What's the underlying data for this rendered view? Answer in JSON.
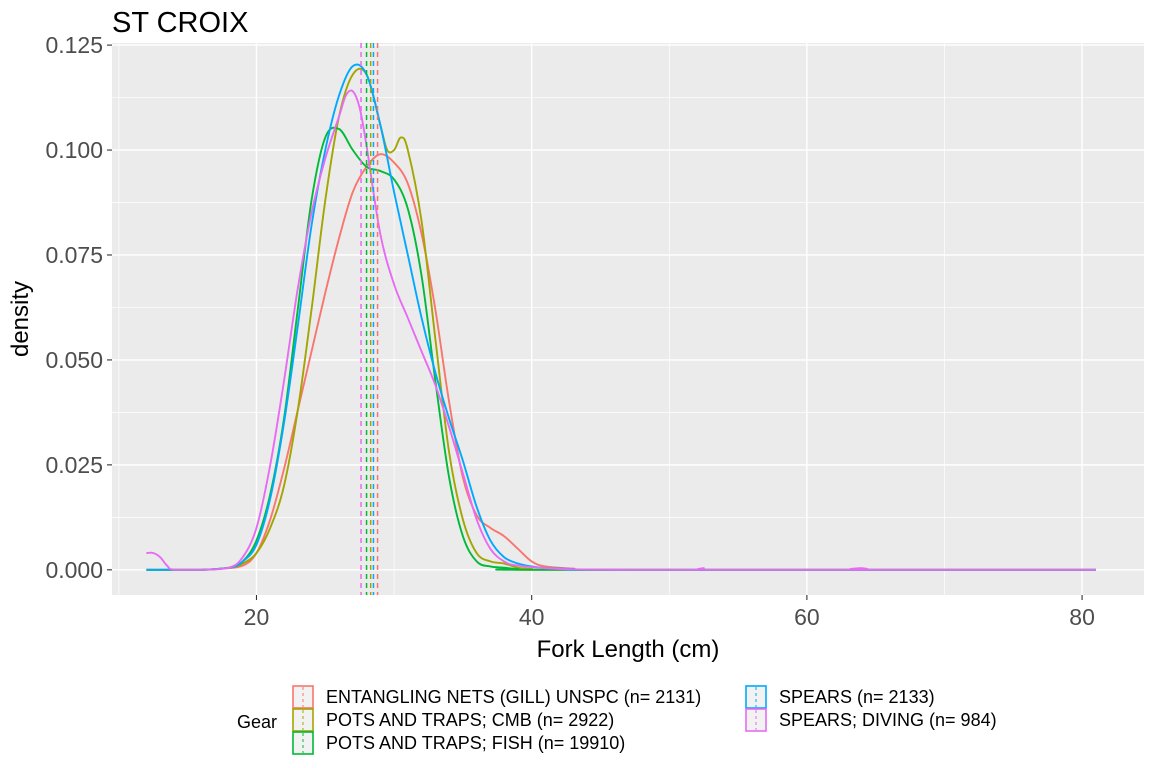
{
  "chart_data": {
    "type": "line",
    "title": "ST CROIX",
    "xlabel": "Fork Length (cm)",
    "ylabel": "density",
    "xlim": [
      9.5,
      84.5
    ],
    "ylim": [
      -0.006,
      0.1255
    ],
    "x_ticks": [
      20,
      40,
      60,
      80
    ],
    "x_tick_labels": [
      "20",
      "40",
      "60",
      "80"
    ],
    "x_minor_ticks": [
      10,
      30,
      50,
      70
    ],
    "y_ticks": [
      0,
      0.025,
      0.05,
      0.075,
      0.1,
      0.125
    ],
    "y_tick_labels": [
      "0.000",
      "0.025",
      "0.050",
      "0.075",
      "0.100",
      "0.125"
    ],
    "grid": true,
    "background": "#ebebeb",
    "legend": {
      "title": "Gear",
      "position": "bottom"
    },
    "series": [
      {
        "name": "ENTANGLING NETS (GILL) UNSPC (n= 2131)",
        "color": "#F8766D",
        "mean": 28.8,
        "points": [
          [
            12,
            0
          ],
          [
            14,
            0
          ],
          [
            16,
            0
          ],
          [
            17.5,
            0.0003
          ],
          [
            19,
            0.001
          ],
          [
            20,
            0.004
          ],
          [
            21,
            0.012
          ],
          [
            22,
            0.024
          ],
          [
            23,
            0.038
          ],
          [
            24,
            0.052
          ],
          [
            25,
            0.066
          ],
          [
            26,
            0.079
          ],
          [
            27,
            0.09
          ],
          [
            28,
            0.096
          ],
          [
            29,
            0.099
          ],
          [
            30,
            0.097
          ],
          [
            31,
            0.092
          ],
          [
            32,
            0.08
          ],
          [
            33,
            0.062
          ],
          [
            34,
            0.04
          ],
          [
            35,
            0.022
          ],
          [
            36,
            0.013
          ],
          [
            37,
            0.01
          ],
          [
            38,
            0.008
          ],
          [
            39,
            0.005
          ],
          [
            40,
            0.002
          ],
          [
            41,
            0.0008
          ],
          [
            43,
            0.0003
          ],
          [
            46,
            0
          ],
          [
            81,
            0
          ]
        ]
      },
      {
        "name": "POTS AND TRAPS; CMB (n= 2922)",
        "color": "#A3A500",
        "mean": 28.3,
        "points": [
          [
            12,
            0
          ],
          [
            14,
            0
          ],
          [
            16,
            0
          ],
          [
            18,
            0.0005
          ],
          [
            19,
            0.0015
          ],
          [
            20,
            0.004
          ],
          [
            21,
            0.01
          ],
          [
            22,
            0.02
          ],
          [
            23,
            0.038
          ],
          [
            24,
            0.062
          ],
          [
            25,
            0.088
          ],
          [
            26,
            0.108
          ],
          [
            27,
            0.118
          ],
          [
            28,
            0.118
          ],
          [
            29,
            0.106
          ],
          [
            29.5,
            0.1
          ],
          [
            30,
            0.1
          ],
          [
            30.5,
            0.103
          ],
          [
            31,
            0.1
          ],
          [
            32,
            0.083
          ],
          [
            33,
            0.055
          ],
          [
            34,
            0.028
          ],
          [
            35,
            0.012
          ],
          [
            36,
            0.004
          ],
          [
            37,
            0.002
          ],
          [
            38,
            0.0015
          ],
          [
            39,
            0.0005
          ],
          [
            40,
            0.0002
          ],
          [
            42,
            0
          ],
          [
            81,
            0
          ]
        ]
      },
      {
        "name": "POTS AND TRAPS; FISH (n= 19910)",
        "color": "#00BA38",
        "mean": 28.0,
        "points": [
          [
            12,
            0
          ],
          [
            14,
            0
          ],
          [
            16,
            0
          ],
          [
            18,
            0.0005
          ],
          [
            19,
            0.002
          ],
          [
            20,
            0.007
          ],
          [
            21,
            0.018
          ],
          [
            22,
            0.036
          ],
          [
            23,
            0.062
          ],
          [
            24,
            0.088
          ],
          [
            25,
            0.103
          ],
          [
            26,
            0.105
          ],
          [
            27,
            0.1
          ],
          [
            28,
            0.096
          ],
          [
            29,
            0.095
          ],
          [
            30,
            0.093
          ],
          [
            31,
            0.086
          ],
          [
            32,
            0.07
          ],
          [
            33,
            0.045
          ],
          [
            34,
            0.022
          ],
          [
            35,
            0.008
          ],
          [
            36,
            0.002
          ],
          [
            37,
            0.0008
          ],
          [
            38,
            0.0005
          ],
          [
            39,
            0.0002
          ],
          [
            41,
            0
          ],
          [
            81,
            0
          ]
        ]
      },
      {
        "name": "SPEARS (n= 2133)",
        "color": "#00A9FF",
        "mean": 28.5,
        "points": [
          [
            12,
            0
          ],
          [
            14,
            0
          ],
          [
            16,
            0
          ],
          [
            18,
            0.0005
          ],
          [
            19,
            0.002
          ],
          [
            20,
            0.006
          ],
          [
            21,
            0.017
          ],
          [
            22,
            0.035
          ],
          [
            23,
            0.058
          ],
          [
            24,
            0.082
          ],
          [
            25,
            0.1
          ],
          [
            26,
            0.113
          ],
          [
            27,
            0.12
          ],
          [
            28,
            0.118
          ],
          [
            29,
            0.106
          ],
          [
            30,
            0.09
          ],
          [
            31,
            0.075
          ],
          [
            32,
            0.06
          ],
          [
            33,
            0.047
          ],
          [
            34,
            0.036
          ],
          [
            35,
            0.026
          ],
          [
            36,
            0.015
          ],
          [
            37,
            0.007
          ],
          [
            38,
            0.003
          ],
          [
            39,
            0.0015
          ],
          [
            40,
            0.0008
          ],
          [
            41,
            0.0004
          ],
          [
            43,
            0.0002
          ],
          [
            46,
            0
          ],
          [
            81,
            0
          ]
        ]
      },
      {
        "name": "SPEARS; DIVING (n= 984)",
        "color": "#E76BF3",
        "mean": 27.6,
        "points": [
          [
            12,
            0.004
          ],
          [
            12.5,
            0.004
          ],
          [
            13,
            0.003
          ],
          [
            13.5,
            0.001
          ],
          [
            14,
            0
          ],
          [
            16,
            0
          ],
          [
            18,
            0.0005
          ],
          [
            19,
            0.003
          ],
          [
            20,
            0.01
          ],
          [
            21,
            0.025
          ],
          [
            22,
            0.045
          ],
          [
            23,
            0.067
          ],
          [
            24,
            0.085
          ],
          [
            25,
            0.098
          ],
          [
            26,
            0.108
          ],
          [
            26.5,
            0.113
          ],
          [
            27,
            0.114
          ],
          [
            27.5,
            0.11
          ],
          [
            28,
            0.101
          ],
          [
            29,
            0.08
          ],
          [
            30,
            0.068
          ],
          [
            31,
            0.06
          ],
          [
            32,
            0.052
          ],
          [
            33,
            0.044
          ],
          [
            34,
            0.034
          ],
          [
            35,
            0.023
          ],
          [
            36,
            0.012
          ],
          [
            37,
            0.005
          ],
          [
            38,
            0.002
          ],
          [
            39,
            0.001
          ],
          [
            42,
            0.0002
          ],
          [
            47,
            0
          ],
          [
            52,
            0
          ],
          [
            52.5,
            0.0004
          ],
          [
            53,
            0
          ],
          [
            63.5,
            0
          ],
          [
            64,
            0.0004
          ],
          [
            64.5,
            0
          ],
          [
            81,
            0
          ]
        ]
      }
    ]
  }
}
